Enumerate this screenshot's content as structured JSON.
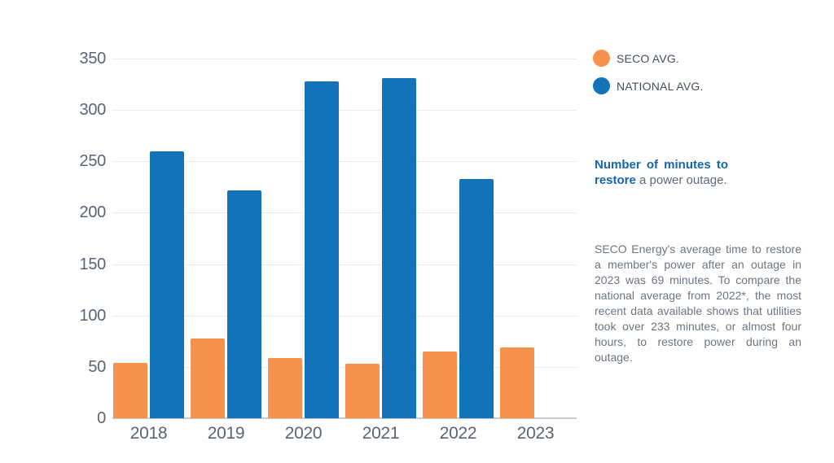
{
  "colors": {
    "seco": "#f6914e",
    "national": "#1273b8",
    "axis_label": "#5c6474",
    "legend_label": "#454d5d",
    "heading_blue": "#1566ac",
    "paragraph_gray": "#6e7480",
    "gridline": "#e8eaec",
    "axis_line": "#c5cad1"
  },
  "legend": {
    "items": [
      {
        "label": "SECO AVG.",
        "color_key": "seco"
      },
      {
        "label": "NATIONAL AVG.",
        "color_key": "national"
      }
    ]
  },
  "caption": {
    "bold": "Number of minutes to restore",
    "rest": " a power outage."
  },
  "paragraph": "SECO Energy's average time to restore a member's power after an outage in 2023 was 69 minutes. To compare the national average from 2022*, the most recent data available shows that utilities took over 233 minutes, or almost four hours, to restore power during an outage.",
  "chart_data": {
    "type": "bar",
    "categories": [
      "2018",
      "2019",
      "2020",
      "2021",
      "2022",
      "2023"
    ],
    "series": [
      {
        "name": "SECO AVG.",
        "color_key": "seco",
        "values": [
          54,
          78,
          59,
          53,
          65,
          69
        ]
      },
      {
        "name": "NATIONAL AVG.",
        "color_key": "national",
        "values": [
          260,
          222,
          328,
          331,
          233,
          null
        ]
      }
    ],
    "title": "",
    "xlabel": "",
    "ylabel": "",
    "ylim": [
      0,
      350
    ],
    "yticks": [
      0,
      50,
      100,
      150,
      200,
      250,
      300,
      350
    ],
    "grid": true,
    "legend_position": "right"
  }
}
